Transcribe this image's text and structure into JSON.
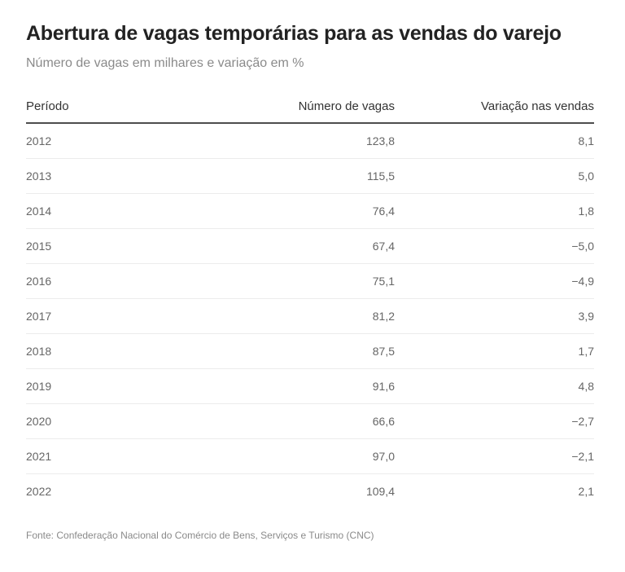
{
  "title": "Abertura de vagas temporárias para as vendas do varejo",
  "subtitle": "Número de vagas em milhares e variação em %",
  "source": "Fonte: Confederação Nacional do Comércio de Bens, Serviços e Turismo (CNC)",
  "chart_data": {
    "type": "table",
    "columns": [
      "Período",
      "Número de vagas",
      "Variação nas vendas"
    ],
    "rows": [
      [
        "2012",
        "123,8",
        "8,1"
      ],
      [
        "2013",
        "115,5",
        "5,0"
      ],
      [
        "2014",
        "76,4",
        "1,8"
      ],
      [
        "2015",
        "67,4",
        "−5,0"
      ],
      [
        "2016",
        "75,1",
        "−4,9"
      ],
      [
        "2017",
        "81,2",
        "3,9"
      ],
      [
        "2018",
        "87,5",
        "1,7"
      ],
      [
        "2019",
        "91,6",
        "4,8"
      ],
      [
        "2020",
        "66,6",
        "−2,7"
      ],
      [
        "2021",
        "97,0",
        "−2,1"
      ],
      [
        "2022",
        "109,4",
        "2,1"
      ]
    ]
  }
}
